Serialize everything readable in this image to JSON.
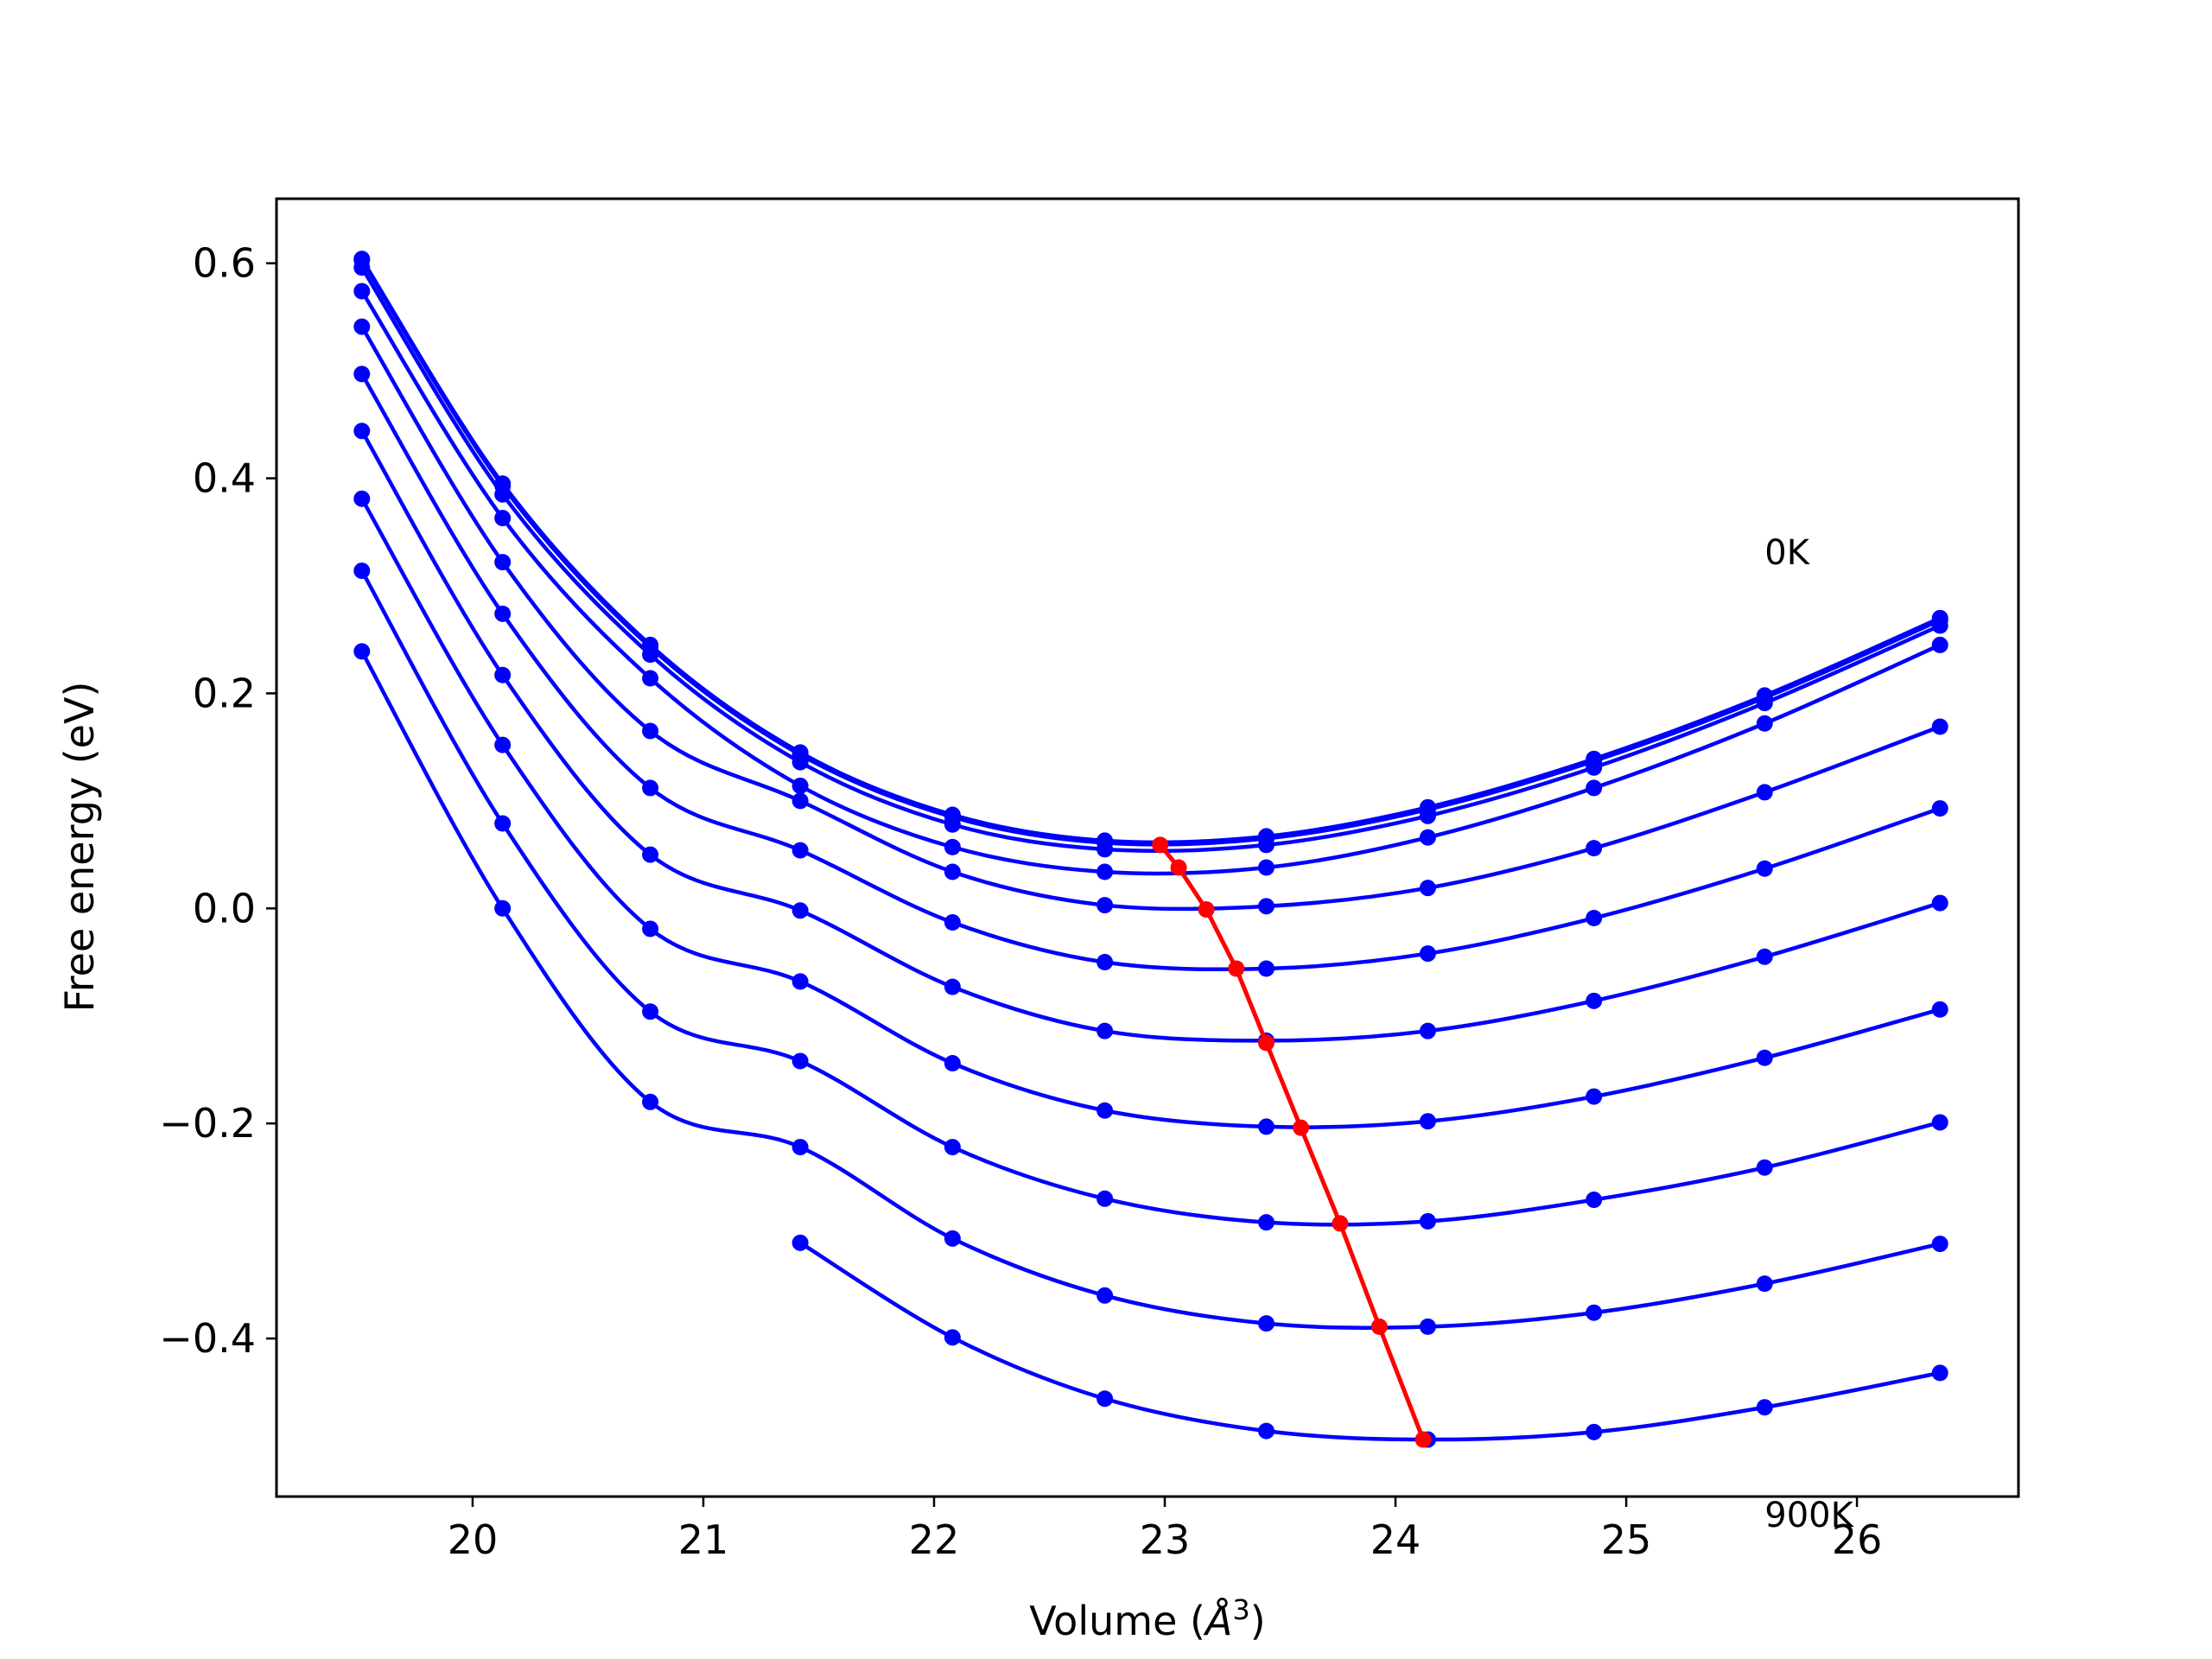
{
  "chart_data": {
    "type": "line",
    "xlabel": "Volume (",
    "xlabel_unit": "Å",
    "xlabel_exp": "3",
    "xlabel_close": ")",
    "ylabel": "Free energy (eV)",
    "xlim": [
      19.15,
      26.7
    ],
    "ylim": [
      -0.547,
      0.66
    ],
    "xticks": [
      20,
      21,
      22,
      23,
      24,
      25,
      26
    ],
    "xtick_labels": [
      "20",
      "21",
      "22",
      "23",
      "24",
      "25",
      "26"
    ],
    "yticks": [
      0.6,
      0.4,
      0.2,
      0.0,
      -0.2,
      -0.4
    ],
    "ytick_labels": [
      "0.6",
      "0.4",
      "0.2",
      "0.0",
      "−0.2",
      "−0.4"
    ],
    "grid": false,
    "annotations": [
      {
        "text": "0K",
        "x": 25.6,
        "y": 0.32
      },
      {
        "text": "900K",
        "x": 25.6,
        "y": -0.575
      }
    ],
    "x": [
      19.52,
      20.13,
      20.77,
      21.42,
      22.08,
      22.74,
      23.44,
      24.14,
      24.86,
      25.6,
      26.36
    ],
    "colors": {
      "curves": "#0000ff",
      "minimum": "#ff0000"
    },
    "series": [
      {
        "values": [
          0.604,
          0.395,
          0.245,
          0.145,
          0.087,
          0.063,
          0.067,
          0.094,
          0.139,
          0.198,
          0.27
        ]
      },
      {
        "values": [
          0.603,
          0.393,
          0.243,
          0.143,
          0.085,
          0.061,
          0.065,
          0.092,
          0.137,
          0.196,
          0.268
        ]
      },
      {
        "values": [
          0.596,
          0.385,
          0.236,
          0.136,
          0.078,
          0.055,
          0.059,
          0.086,
          0.131,
          0.191,
          0.263
        ]
      },
      {
        "values": [
          0.574,
          0.363,
          0.214,
          0.114,
          0.057,
          0.034,
          0.038,
          0.066,
          0.112,
          0.172,
          0.245
        ]
      },
      {
        "values": [
          0.541,
          0.322,
          0.165,
          0.1,
          0.034,
          0.003,
          0.002,
          0.019,
          0.056,
          0.108,
          0.169
        ]
      },
      {
        "values": [
          0.497,
          0.274,
          0.112,
          0.054,
          -0.013,
          -0.05,
          -0.056,
          -0.042,
          -0.009,
          0.037,
          0.093
        ]
      },
      {
        "values": [
          0.444,
          0.217,
          0.05,
          -0.002,
          -0.073,
          -0.114,
          -0.123,
          -0.114,
          -0.086,
          -0.045,
          0.005
        ]
      },
      {
        "values": [
          0.381,
          0.152,
          -0.019,
          -0.068,
          -0.144,
          -0.188,
          -0.203,
          -0.198,
          -0.175,
          -0.139,
          -0.094
        ]
      },
      {
        "values": [
          0.314,
          0.079,
          -0.096,
          -0.142,
          -0.222,
          -0.27,
          -0.292,
          -0.291,
          -0.271,
          -0.241,
          -0.199
        ]
      },
      {
        "values": [
          0.239,
          0.0,
          -0.18,
          -0.222,
          -0.307,
          -0.36,
          -0.386,
          -0.389,
          -0.376,
          -0.349,
          -0.312
        ]
      },
      {
        "values": [
          null,
          null,
          null,
          -0.311,
          -0.399,
          -0.456,
          -0.486,
          -0.494,
          -0.487,
          -0.464,
          -0.432
        ]
      }
    ],
    "minimum_series": {
      "x": [
        22.98,
        23.06,
        23.18,
        23.31,
        23.44,
        23.59,
        23.76,
        23.93,
        24.12
      ],
      "y": [
        0.059,
        0.038,
        -0.001,
        -0.056,
        -0.125,
        -0.204,
        -0.293,
        -0.389,
        -0.494
      ]
    }
  }
}
